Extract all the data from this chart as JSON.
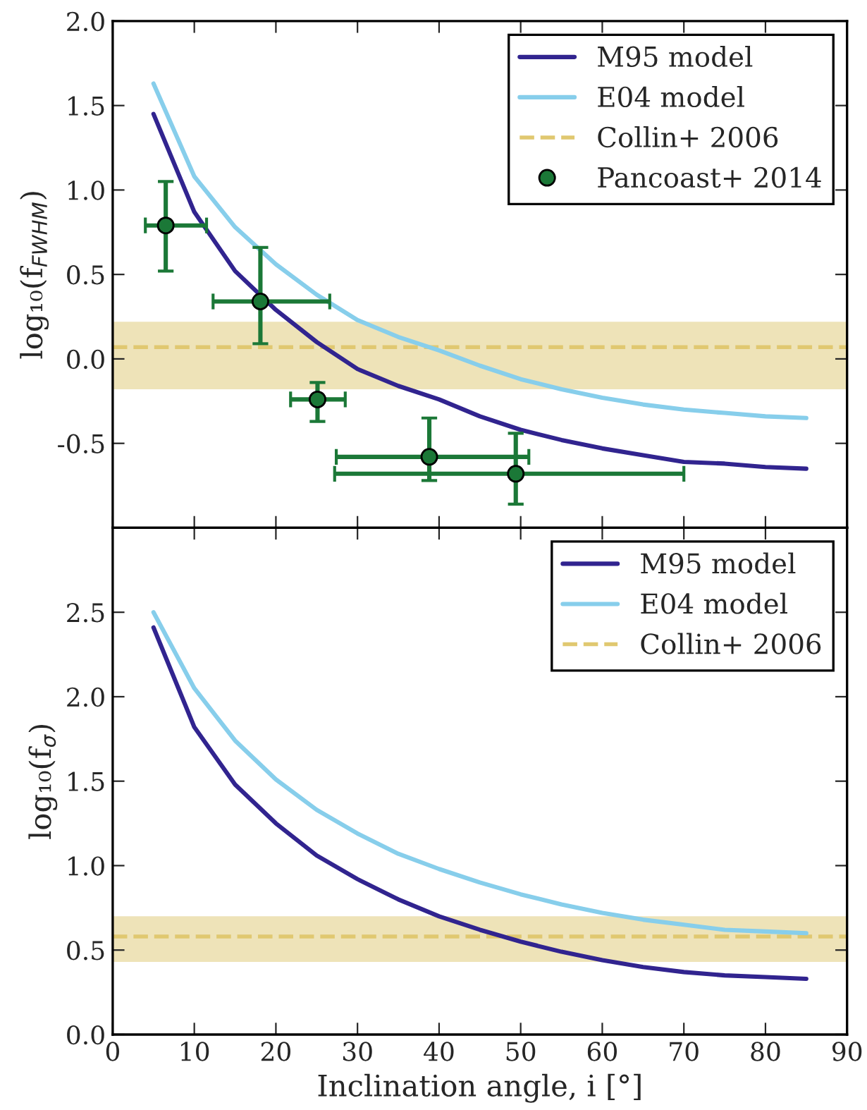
{
  "chart_data": [
    {
      "type": "line",
      "ylabel": "log₁₀(f$_{FWHM}$)",
      "x": [
        5,
        10,
        15,
        20,
        25,
        30,
        35,
        40,
        45,
        50,
        55,
        60,
        65,
        70,
        75,
        80,
        85
      ],
      "xlim": [
        0,
        90
      ],
      "xticks": [
        0,
        10,
        20,
        30,
        40,
        50,
        60,
        70,
        80,
        90
      ],
      "ylim": [
        -1.0,
        2.0
      ],
      "yticks": [
        -0.5,
        {
          "value": 0,
          "label": "0.0"
        },
        0.5,
        {
          "value": 1,
          "label": "1.0"
        },
        1.5,
        {
          "value": 2,
          "label": "2.0"
        }
      ],
      "tick_labels": "y",
      "series": [
        {
          "name": "M95 model",
          "color": "#31248f",
          "values": [
            1.45,
            0.87,
            0.52,
            0.29,
            0.1,
            -0.06,
            -0.16,
            -0.24,
            -0.34,
            -0.42,
            -0.48,
            -0.53,
            -0.57,
            -0.61,
            -0.62,
            -0.64,
            -0.65
          ]
        },
        {
          "name": "E04 model",
          "color": "#87ceeb",
          "values": [
            1.63,
            1.08,
            0.78,
            0.56,
            0.38,
            0.23,
            0.13,
            0.05,
            -0.04,
            -0.12,
            -0.18,
            -0.23,
            -0.27,
            -0.3,
            -0.32,
            -0.34,
            -0.35
          ]
        },
        {
          "name": "Pancoast+ 2014",
          "type": "scatter",
          "color": "#1b7837",
          "marker": "circle",
          "x": [
            6.5,
            18.1,
            25.1,
            38.8,
            49.4
          ],
          "values": [
            0.79,
            0.34,
            -0.24,
            -0.58,
            -0.68
          ],
          "errors": [
            [
              0.52,
              1.05
            ],
            [
              0.09,
              0.66
            ],
            [
              -0.37,
              -0.14
            ],
            [
              -0.72,
              -0.35
            ],
            [
              -0.86,
              -0.44
            ]
          ],
          "xerrors": [
            [
              4.0,
              11.5
            ],
            [
              12.3,
              26.6
            ],
            [
              21.8,
              28.5
            ],
            [
              27.4,
              51.0
            ],
            [
              27.2,
              70.0
            ]
          ]
        }
      ],
      "ref_lines": [
        {
          "axis": "y",
          "value": 0.07,
          "label": "Collin+ 2006",
          "color": "#e0c870",
          "line_style": "dashed"
        }
      ],
      "bands": [
        {
          "axis": "y",
          "from": -0.18,
          "to": 0.22,
          "color": "#eee3b8"
        }
      ],
      "legend": "top right"
    },
    {
      "type": "line",
      "ylabel": "log₁₀(f$_{σ}$)",
      "xlabel": "Inclination angle, i [°]",
      "x": [
        5,
        10,
        15,
        20,
        25,
        30,
        35,
        40,
        45,
        50,
        55,
        60,
        65,
        70,
        75,
        80,
        85
      ],
      "xlim": [
        0,
        90
      ],
      "xticks": [
        0,
        10,
        20,
        30,
        40,
        50,
        60,
        70,
        80,
        90
      ],
      "ylim": [
        0.0,
        3.0
      ],
      "yticks": [
        {
          "value": 0,
          "label": "0.0"
        },
        0.5,
        {
          "value": 1,
          "label": "1.0"
        },
        1.5,
        {
          "value": 2,
          "label": "2.0"
        },
        2.5
      ],
      "series": [
        {
          "name": "M95 model",
          "color": "#31248f",
          "values": [
            2.41,
            1.82,
            1.48,
            1.25,
            1.06,
            0.92,
            0.8,
            0.7,
            0.62,
            0.55,
            0.49,
            0.44,
            0.4,
            0.37,
            0.35,
            0.34,
            0.33
          ]
        },
        {
          "name": "E04 model",
          "color": "#87ceeb",
          "values": [
            2.5,
            2.05,
            1.74,
            1.51,
            1.33,
            1.19,
            1.07,
            0.98,
            0.9,
            0.83,
            0.77,
            0.72,
            0.68,
            0.65,
            0.62,
            0.61,
            0.6
          ]
        }
      ],
      "ref_lines": [
        {
          "axis": "y",
          "value": 0.58,
          "label": "Collin+ 2006",
          "color": "#e0c870",
          "line_style": "dashed"
        }
      ],
      "bands": [
        {
          "axis": "y",
          "from": 0.43,
          "to": 0.7,
          "color": "#eee3b8"
        }
      ],
      "legend": "top right"
    }
  ]
}
